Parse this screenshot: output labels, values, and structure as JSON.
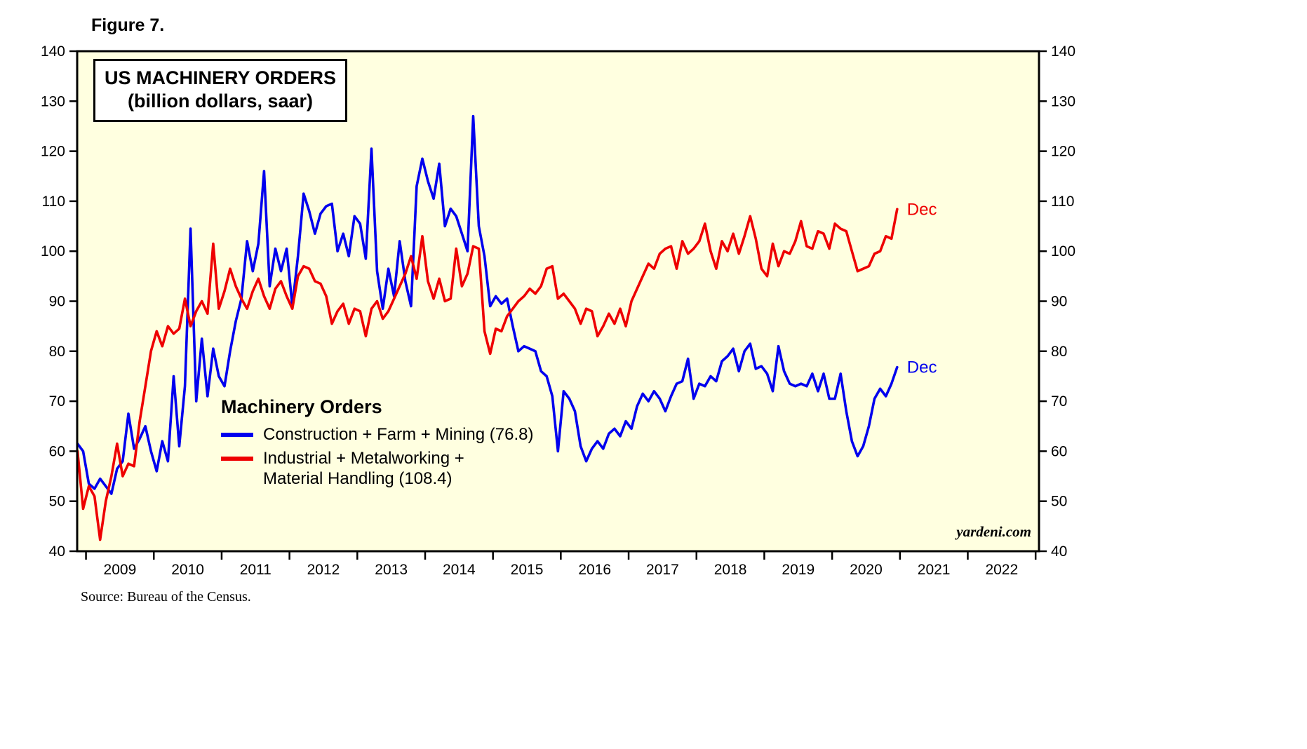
{
  "figure_label": "Figure 7.",
  "title_box": {
    "line1": "US MACHINERY ORDERS",
    "line2": "(billion dollars, saar)"
  },
  "legend": {
    "heading": "Machinery Orders",
    "entry1_label": "Construction + Farm + Mining (76.8)",
    "entry2_label_line1": "Industrial + Metalworking +",
    "entry2_label_line2": "Material Handling (108.4)"
  },
  "watermark": "yardeni.com",
  "source": "Source: Bureau of the Census.",
  "colors": {
    "blue_series": "#0000EE",
    "red_series": "#EE0000",
    "plot_background": "#FFFFE0",
    "frame": "#000000"
  },
  "chart_data": {
    "type": "line",
    "title": "US MACHINERY ORDERS (billion dollars, saar)",
    "ylabel": "billion dollars, saar",
    "ylim": [
      40,
      140
    ],
    "ytick_step": 10,
    "yticks": [
      40,
      50,
      60,
      70,
      80,
      90,
      100,
      110,
      120,
      130,
      140
    ],
    "x_tick_years": [
      2009,
      2010,
      2011,
      2012,
      2013,
      2014,
      2015,
      2016,
      2017,
      2018,
      2019,
      2020,
      2021,
      2022
    ],
    "x_domain": [
      2008.87,
      2023.05
    ],
    "data_start_year": 2008,
    "data_start_month": 11,
    "frequency": "monthly",
    "grid": false,
    "legend_position": "inside-center-left",
    "series": [
      {
        "name": "Construction + Farm + Mining",
        "color": "#0000EE",
        "last_value": 76.8,
        "end_label": "Dec",
        "values": [
          61.5,
          60,
          53.5,
          52.5,
          54.5,
          53,
          51.5,
          56.5,
          58,
          67.5,
          60.5,
          62.5,
          65,
          60,
          56,
          62,
          58,
          75,
          61,
          73,
          104.5,
          70,
          82.5,
          71,
          80.5,
          75,
          73,
          80,
          86,
          90.5,
          102,
          96,
          101.5,
          116,
          93,
          100.5,
          96,
          100.5,
          89,
          99,
          111.5,
          108,
          103.5,
          107.5,
          109,
          109.5,
          100,
          103.5,
          99,
          107,
          105.5,
          98.5,
          120.5,
          96,
          88.5,
          96.5,
          91,
          102,
          94,
          89,
          113,
          118.5,
          114,
          110.5,
          117.5,
          105,
          108.5,
          107,
          103.5,
          100,
          127,
          105,
          99,
          89,
          91,
          89.5,
          90.5,
          85,
          80,
          81,
          80.5,
          80,
          76,
          75,
          71,
          60,
          72,
          70.5,
          68,
          61,
          58,
          60.5,
          62,
          60.5,
          63.5,
          64.5,
          63,
          66,
          64.5,
          69,
          71.5,
          70,
          72,
          70.5,
          68,
          71,
          73.5,
          74,
          78.5,
          70.5,
          73.5,
          73,
          75,
          74,
          78,
          79,
          80.5,
          76,
          80,
          81.5,
          76.5,
          77,
          75.5,
          72,
          81,
          76,
          73.5,
          73,
          73.5,
          73,
          75.5,
          72,
          75.5,
          70.5,
          70.5,
          75.5,
          68,
          62,
          59,
          61,
          65,
          70.5,
          72.5,
          71,
          73.5,
          76.8
        ]
      },
      {
        "name": "Industrial + Metalworking + Material Handling",
        "color": "#EE0000",
        "last_value": 108.4,
        "end_label": "Dec",
        "values": [
          60,
          48.5,
          53,
          51,
          42.3,
          50,
          55,
          61.5,
          55,
          57.5,
          57,
          66,
          73,
          80,
          84,
          81,
          85,
          83.5,
          84.5,
          90.5,
          85,
          88,
          90,
          87.5,
          101.5,
          88.5,
          92,
          96.5,
          93,
          90.5,
          88.5,
          92,
          94.5,
          91,
          88.5,
          92.5,
          94,
          91,
          88.5,
          95,
          97,
          96.5,
          94,
          93.5,
          91,
          85.5,
          88,
          89.5,
          85.5,
          88.5,
          88,
          83,
          88.5,
          90,
          86.5,
          88,
          90.5,
          93,
          95.5,
          99,
          94.5,
          103,
          94,
          90.5,
          94.5,
          90,
          90.5,
          100.5,
          93,
          95.5,
          101,
          100.5,
          84,
          79.5,
          84.5,
          84,
          87,
          88.5,
          90,
          91,
          92.5,
          91.5,
          93,
          96.5,
          97,
          90.5,
          91.5,
          90,
          88.5,
          85.5,
          88.5,
          88,
          83,
          85,
          87.5,
          85.5,
          88.5,
          85,
          90,
          92.5,
          95,
          97.5,
          96.5,
          99.5,
          100.5,
          101,
          96.5,
          102,
          99.5,
          100.5,
          102,
          105.5,
          100,
          96.5,
          102,
          100,
          103.5,
          99.5,
          103,
          107,
          102.5,
          96.5,
          95,
          101.5,
          97,
          100,
          99.5,
          102,
          106,
          101,
          100.5,
          104,
          103.5,
          100.5,
          105.5,
          104.5,
          104,
          100,
          96,
          96.5,
          97,
          99.5,
          100,
          103,
          102.5,
          108.4
        ]
      }
    ]
  }
}
